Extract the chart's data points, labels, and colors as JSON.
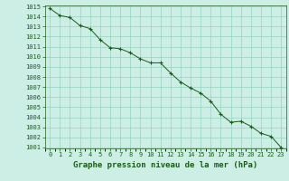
{
  "x": [
    0,
    1,
    2,
    3,
    4,
    5,
    6,
    7,
    8,
    9,
    10,
    11,
    12,
    13,
    14,
    15,
    16,
    17,
    18,
    19,
    20,
    21,
    22,
    23
  ],
  "y": [
    1014.8,
    1014.1,
    1013.9,
    1013.1,
    1012.8,
    1011.7,
    1010.9,
    1010.8,
    1010.4,
    1009.8,
    1009.4,
    1009.4,
    1008.4,
    1007.5,
    1006.9,
    1006.4,
    1005.6,
    1004.3,
    1003.5,
    1003.6,
    1003.1,
    1002.4,
    1002.1,
    1001.0
  ],
  "line_color": "#1a5c1a",
  "marker": "+",
  "marker_size": 3,
  "marker_color": "#1a5c1a",
  "bg_color": "#cceee4",
  "grid_color": "#88ccb8",
  "axis_label_color": "#1a5c1a",
  "tick_label_color": "#1a5c1a",
  "xlabel": "Graphe pression niveau de la mer (hPa)",
  "xlabel_fontsize": 6.5,
  "tick_fontsize": 5,
  "ylim": [
    1001,
    1015
  ],
  "xlim": [
    -0.5,
    23.5
  ],
  "yticks": [
    1001,
    1002,
    1003,
    1004,
    1005,
    1006,
    1007,
    1008,
    1009,
    1010,
    1011,
    1012,
    1013,
    1014,
    1015
  ],
  "xticks": [
    0,
    1,
    2,
    3,
    4,
    5,
    6,
    7,
    8,
    9,
    10,
    11,
    12,
    13,
    14,
    15,
    16,
    17,
    18,
    19,
    20,
    21,
    22,
    23
  ]
}
